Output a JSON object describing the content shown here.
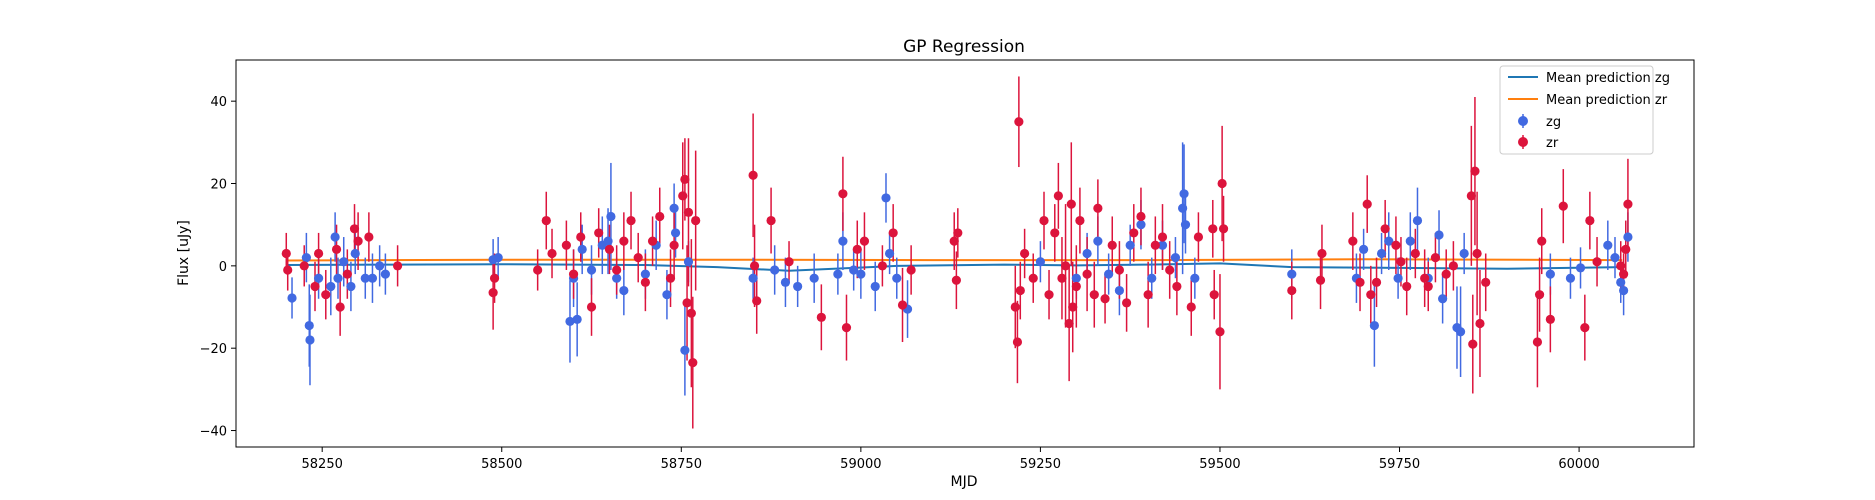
{
  "chart_data": {
    "type": "scatter",
    "title": "GP Regression",
    "xlabel": "MJD",
    "ylabel": "Flux [uJy]",
    "xlim": [
      58130,
      60160
    ],
    "ylim": [
      -44,
      50
    ],
    "xticks": [
      58250,
      58500,
      58750,
      59000,
      59250,
      59500,
      59750,
      60000
    ],
    "yticks": [
      -40,
      -20,
      0,
      20,
      40
    ],
    "grid": false,
    "legend_position": "top-right",
    "colors": {
      "zg_points": "#4169e1",
      "zr_points": "#dc143c",
      "zg_mean": "#1f77b4",
      "zr_mean": "#ff7f0e"
    },
    "mean_lines": [
      {
        "name": "Mean prediction zg",
        "color": "#1f77b4",
        "x": [
          58200,
          58350,
          58500,
          58700,
          58800,
          58900,
          59050,
          59200,
          59300,
          59400,
          59500,
          59600,
          59750,
          59900,
          60060
        ],
        "y": [
          0.2,
          0.3,
          0.4,
          0.2,
          -0.3,
          -1.2,
          0.0,
          0.3,
          0.1,
          0.3,
          0.6,
          -0.3,
          -0.5,
          -0.7,
          -0.3
        ]
      },
      {
        "name": "Mean prediction zr",
        "color": "#ff7f0e",
        "x": [
          58200,
          58500,
          58800,
          59100,
          59400,
          59700,
          60060
        ],
        "y": [
          1.3,
          1.5,
          1.5,
          1.4,
          1.4,
          1.6,
          1.4
        ]
      }
    ],
    "series": [
      {
        "name": "zg",
        "color": "#4169e1",
        "points": [
          [
            58208,
            -7.8,
            5
          ],
          [
            58228,
            2,
            6
          ],
          [
            58232,
            -14.5,
            10
          ],
          [
            58233,
            -18,
            11
          ],
          [
            58245,
            -3,
            5
          ],
          [
            58262,
            -5,
            7
          ],
          [
            58268,
            7,
            6
          ],
          [
            58272,
            -3,
            5
          ],
          [
            58280,
            1,
            6
          ],
          [
            58290,
            -5,
            6
          ],
          [
            58296,
            3,
            5
          ],
          [
            58310,
            -3,
            5
          ],
          [
            58320,
            -3,
            6
          ],
          [
            58330,
            0,
            5
          ],
          [
            58338,
            -2,
            5
          ],
          [
            58488,
            1.5,
            5
          ],
          [
            58495,
            2,
            5
          ],
          [
            58595,
            -13.5,
            10
          ],
          [
            58600,
            -3,
            7
          ],
          [
            58605,
            -13,
            9
          ],
          [
            58612,
            4,
            6
          ],
          [
            58625,
            -1,
            6
          ],
          [
            58640,
            5,
            7
          ],
          [
            58648,
            6,
            8
          ],
          [
            58652,
            12,
            13
          ],
          [
            58660,
            -3,
            5
          ],
          [
            58670,
            -6,
            6
          ],
          [
            58700,
            -2,
            6
          ],
          [
            58715,
            5,
            6
          ],
          [
            58730,
            -7,
            6
          ],
          [
            58740,
            14,
            6
          ],
          [
            58742,
            8,
            6
          ],
          [
            58755,
            -20.5,
            11
          ],
          [
            58760,
            1,
            5
          ],
          [
            58850,
            -3,
            5
          ],
          [
            58880,
            -1,
            6
          ],
          [
            58895,
            -4,
            6
          ],
          [
            58912,
            -5,
            5
          ],
          [
            58935,
            -3,
            6
          ],
          [
            58968,
            -2,
            5
          ],
          [
            58975,
            6,
            7
          ],
          [
            58990,
            -1,
            5
          ],
          [
            59000,
            -2,
            6
          ],
          [
            59020,
            -5,
            6
          ],
          [
            59035,
            16.5,
            6
          ],
          [
            59040,
            3,
            5
          ],
          [
            59050,
            -3,
            5
          ],
          [
            59065,
            -10.5,
            7
          ],
          [
            59250,
            1,
            5
          ],
          [
            59300,
            -3,
            5
          ],
          [
            59315,
            3,
            5
          ],
          [
            59330,
            6,
            6
          ],
          [
            59345,
            -2,
            5
          ],
          [
            59360,
            -6,
            6
          ],
          [
            59375,
            5,
            5
          ],
          [
            59390,
            10,
            6
          ],
          [
            59405,
            -3,
            5
          ],
          [
            59420,
            5,
            6
          ],
          [
            59438,
            2,
            5
          ],
          [
            59448,
            14,
            16
          ],
          [
            59450,
            17.5,
            12
          ],
          [
            59452,
            10,
            7
          ],
          [
            59465,
            -3,
            5
          ],
          [
            59600,
            -2,
            6
          ],
          [
            59690,
            -3,
            6
          ],
          [
            59700,
            4,
            5
          ],
          [
            59715,
            -14.5,
            10
          ],
          [
            59725,
            3,
            5
          ],
          [
            59735,
            6,
            7
          ],
          [
            59748,
            -3,
            5
          ],
          [
            59765,
            6,
            7
          ],
          [
            59775,
            11,
            8
          ],
          [
            59790,
            -3,
            5
          ],
          [
            59805,
            7.5,
            6
          ],
          [
            59810,
            -8,
            6
          ],
          [
            59830,
            -15,
            10
          ],
          [
            59835,
            -16,
            11
          ],
          [
            59840,
            3,
            5
          ],
          [
            59960,
            -2,
            5
          ],
          [
            59988,
            -3,
            5
          ],
          [
            60002,
            -0.5,
            5
          ],
          [
            60040,
            5,
            6
          ],
          [
            60050,
            2,
            5
          ],
          [
            60058,
            -4,
            5
          ],
          [
            60062,
            -6,
            6
          ],
          [
            60068,
            7,
            6
          ]
        ]
      },
      {
        "name": "zr",
        "color": "#dc143c",
        "points": [
          [
            58200,
            3,
            5
          ],
          [
            58202,
            -1,
            5
          ],
          [
            58225,
            0,
            5
          ],
          [
            58240,
            -5,
            6
          ],
          [
            58245,
            3,
            5
          ],
          [
            58255,
            -7,
            6
          ],
          [
            58270,
            4,
            6
          ],
          [
            58275,
            -10,
            7
          ],
          [
            58285,
            -2,
            6
          ],
          [
            58295,
            9,
            6
          ],
          [
            58300,
            6,
            7
          ],
          [
            58315,
            7,
            6
          ],
          [
            58355,
            0,
            5
          ],
          [
            58488,
            -6.5,
            9
          ],
          [
            58490,
            -3,
            6
          ],
          [
            58550,
            -1,
            5
          ],
          [
            58562,
            11,
            7
          ],
          [
            58570,
            3,
            6
          ],
          [
            58590,
            5,
            6
          ],
          [
            58600,
            -2,
            6
          ],
          [
            58610,
            7,
            6
          ],
          [
            58625,
            -10,
            7
          ],
          [
            58635,
            8,
            6
          ],
          [
            58650,
            4,
            6
          ],
          [
            58660,
            -1,
            6
          ],
          [
            58670,
            6,
            7
          ],
          [
            58680,
            11,
            7
          ],
          [
            58690,
            2,
            6
          ],
          [
            58700,
            -4,
            7
          ],
          [
            58710,
            6,
            6
          ],
          [
            58720,
            12,
            7
          ],
          [
            58735,
            -3,
            7
          ],
          [
            58740,
            5,
            8
          ],
          [
            58752,
            17,
            13
          ],
          [
            58755,
            21,
            10
          ],
          [
            58758,
            -9,
            14
          ],
          [
            58760,
            13,
            18
          ],
          [
            58764,
            -11.5,
            18
          ],
          [
            58766,
            -23.5,
            16
          ],
          [
            58770,
            11,
            17
          ],
          [
            58850,
            22,
            15
          ],
          [
            58852,
            0,
            10
          ],
          [
            58855,
            -8.5,
            8
          ],
          [
            58875,
            11,
            8
          ],
          [
            58900,
            1,
            5
          ],
          [
            58945,
            -12.5,
            8
          ],
          [
            58975,
            17.5,
            9
          ],
          [
            58980,
            -15,
            8
          ],
          [
            58995,
            4,
            7
          ],
          [
            59005,
            6,
            7
          ],
          [
            59030,
            0,
            5
          ],
          [
            59045,
            8,
            7
          ],
          [
            59058,
            -9.5,
            9
          ],
          [
            59070,
            -1,
            6
          ],
          [
            59130,
            6,
            7
          ],
          [
            59133,
            -3.5,
            7
          ],
          [
            59135,
            8,
            6
          ],
          [
            59215,
            -10,
            10
          ],
          [
            59218,
            -18.5,
            10
          ],
          [
            59220,
            35,
            11
          ],
          [
            59222,
            -6,
            7
          ],
          [
            59228,
            3,
            6
          ],
          [
            59240,
            -3,
            6
          ],
          [
            59255,
            11,
            7
          ],
          [
            59262,
            -7,
            6
          ],
          [
            59270,
            8,
            7
          ],
          [
            59275,
            17,
            8
          ],
          [
            59280,
            -3,
            10
          ],
          [
            59285,
            0,
            15
          ],
          [
            59290,
            -14,
            14
          ],
          [
            59293,
            15,
            15
          ],
          [
            59295,
            -10,
            11
          ],
          [
            59300,
            -5,
            10
          ],
          [
            59305,
            11,
            8
          ],
          [
            59315,
            -2,
            9
          ],
          [
            59325,
            -7,
            8
          ],
          [
            59330,
            14,
            7
          ],
          [
            59340,
            -8,
            6
          ],
          [
            59350,
            5,
            7
          ],
          [
            59360,
            -1,
            7
          ],
          [
            59370,
            -9,
            7
          ],
          [
            59380,
            8,
            7
          ],
          [
            59390,
            12,
            7
          ],
          [
            59400,
            -7,
            8
          ],
          [
            59410,
            5,
            7
          ],
          [
            59420,
            7,
            8
          ],
          [
            59430,
            -1,
            7
          ],
          [
            59440,
            -5,
            7
          ],
          [
            59460,
            -10,
            7
          ],
          [
            59470,
            7,
            6
          ],
          [
            59490,
            9,
            7
          ],
          [
            59492,
            -7,
            6
          ],
          [
            59500,
            -16,
            14
          ],
          [
            59503,
            20,
            14
          ],
          [
            59505,
            9,
            8
          ],
          [
            59600,
            -6,
            7
          ],
          [
            59640,
            -3.5,
            7
          ],
          [
            59642,
            3,
            7
          ],
          [
            59685,
            6,
            7
          ],
          [
            59695,
            -4,
            7
          ],
          [
            59705,
            15,
            7
          ],
          [
            59710,
            -7,
            7
          ],
          [
            59718,
            -4,
            6
          ],
          [
            59730,
            9,
            7
          ],
          [
            59745,
            5,
            7
          ],
          [
            59752,
            1,
            6
          ],
          [
            59760,
            -5,
            7
          ],
          [
            59772,
            3,
            6
          ],
          [
            59785,
            -3,
            7
          ],
          [
            59790,
            -5,
            6
          ],
          [
            59800,
            2,
            6
          ],
          [
            59815,
            -2,
            6
          ],
          [
            59825,
            0,
            6
          ],
          [
            59850,
            17,
            17
          ],
          [
            59852,
            -19,
            12
          ],
          [
            59855,
            23,
            18
          ],
          [
            59858,
            3,
            15
          ],
          [
            59862,
            -14,
            13
          ],
          [
            59870,
            -4,
            7
          ],
          [
            59942,
            -18.5,
            11
          ],
          [
            59945,
            -7,
            9
          ],
          [
            59948,
            6,
            8
          ],
          [
            59960,
            -13,
            8
          ],
          [
            59978,
            14.5,
            9
          ],
          [
            60008,
            -15,
            8
          ],
          [
            60015,
            11,
            7
          ],
          [
            60025,
            1,
            6
          ],
          [
            60058,
            0,
            6
          ],
          [
            60062,
            -2,
            5
          ],
          [
            60065,
            4,
            7
          ],
          [
            60068,
            15,
            11
          ]
        ]
      }
    ]
  }
}
